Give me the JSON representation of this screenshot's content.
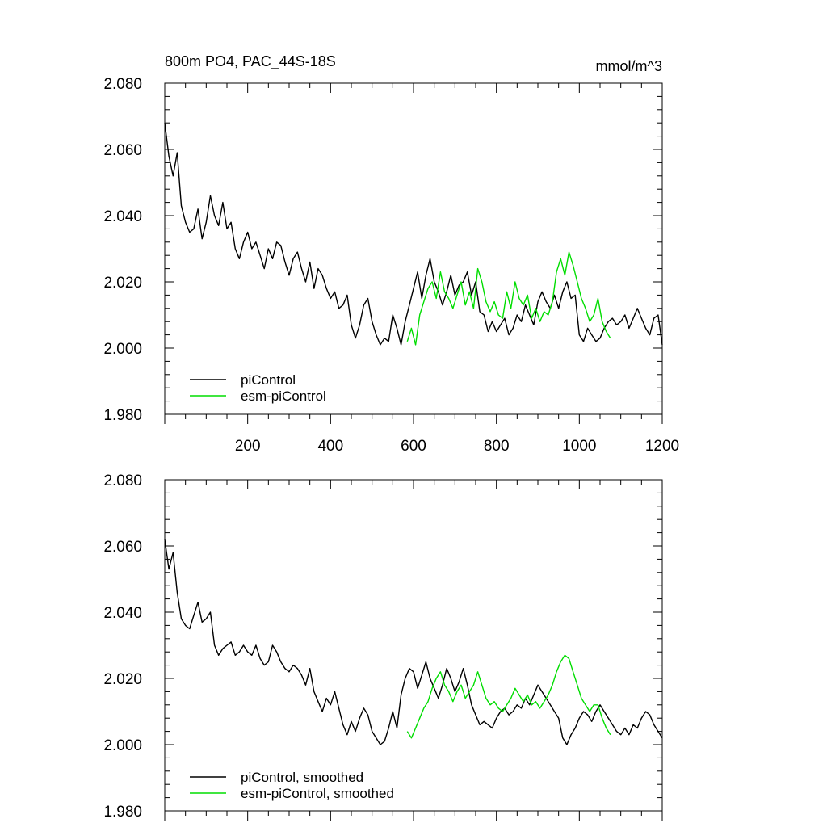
{
  "chart_data": [
    {
      "type": "line",
      "title": "800m PO4, PAC_44S-18S",
      "units": "mmol/m^3",
      "xlabel": "",
      "ylabel": "",
      "xlim": [
        0,
        1200
      ],
      "ylim": [
        1.98,
        2.08
      ],
      "yticks": [
        "2.080",
        "2.060",
        "2.040",
        "2.020",
        "2.000",
        "1.980"
      ],
      "xticks": [
        "200",
        "400",
        "600",
        "800",
        "1000",
        "1200"
      ],
      "grid": false,
      "legend_position": "bottom-left",
      "series": [
        {
          "name": "piControl",
          "color": "#000000",
          "x": [
            0,
            10,
            20,
            30,
            40,
            50,
            60,
            70,
            80,
            90,
            100,
            110,
            120,
            130,
            140,
            150,
            160,
            170,
            180,
            190,
            200,
            210,
            220,
            230,
            240,
            250,
            260,
            270,
            280,
            290,
            300,
            310,
            320,
            330,
            340,
            350,
            360,
            370,
            380,
            390,
            400,
            410,
            420,
            430,
            440,
            450,
            460,
            470,
            480,
            490,
            500,
            510,
            520,
            530,
            540,
            550,
            560,
            570,
            580,
            590,
            600,
            610,
            620,
            630,
            640,
            650,
            660,
            670,
            680,
            690,
            700,
            710,
            720,
            730,
            740,
            750,
            760,
            770,
            780,
            790,
            800,
            810,
            820,
            830,
            840,
            850,
            860,
            870,
            880,
            890,
            900,
            910,
            920,
            930,
            940,
            950,
            960,
            970,
            980,
            990,
            1000,
            1010,
            1020,
            1030,
            1040,
            1050,
            1060,
            1070,
            1080,
            1090,
            1100,
            1110,
            1120,
            1130,
            1140,
            1150,
            1160,
            1170,
            1180,
            1190,
            1200
          ],
          "values": [
            2.068,
            2.058,
            2.052,
            2.059,
            2.043,
            2.038,
            2.035,
            2.036,
            2.042,
            2.033,
            2.038,
            2.046,
            2.04,
            2.037,
            2.044,
            2.036,
            2.038,
            2.03,
            2.027,
            2.032,
            2.035,
            2.03,
            2.032,
            2.028,
            2.024,
            2.03,
            2.027,
            2.032,
            2.031,
            2.026,
            2.022,
            2.027,
            2.029,
            2.024,
            2.02,
            2.026,
            2.018,
            2.024,
            2.022,
            2.018,
            2.015,
            2.017,
            2.012,
            2.013,
            2.016,
            2.007,
            2.003,
            2.007,
            2.013,
            2.015,
            2.008,
            2.004,
            2.001,
            2.003,
            2.002,
            2.01,
            2.006,
            2.001,
            2.008,
            2.013,
            2.018,
            2.023,
            2.015,
            2.022,
            2.027,
            2.02,
            2.017,
            2.013,
            2.017,
            2.022,
            2.016,
            2.019,
            2.02,
            2.023,
            2.016,
            2.02,
            2.011,
            2.01,
            2.005,
            2.008,
            2.005,
            2.007,
            2.009,
            2.004,
            2.006,
            2.01,
            2.008,
            2.013,
            2.01,
            2.007,
            2.014,
            2.017,
            2.014,
            2.012,
            2.016,
            2.012,
            2.017,
            2.02,
            2.015,
            2.016,
            2.004,
            2.002,
            2.006,
            2.004,
            2.002,
            2.003,
            2.006,
            2.008,
            2.009,
            2.007,
            2.008,
            2.01,
            2.006,
            2.009,
            2.012,
            2.009,
            2.006,
            2.004,
            2.009,
            2.01,
            2.001
          ]
        },
        {
          "name": "esm-piControl",
          "color": "#00dd00",
          "x": [
            585,
            595,
            605,
            615,
            625,
            635,
            645,
            655,
            665,
            675,
            685,
            695,
            705,
            715,
            725,
            735,
            745,
            755,
            765,
            775,
            785,
            795,
            805,
            815,
            825,
            835,
            845,
            855,
            865,
            875,
            885,
            895,
            905,
            915,
            925,
            935,
            945,
            955,
            965,
            975,
            985,
            995,
            1005,
            1015,
            1025,
            1035,
            1045,
            1055,
            1065,
            1075
          ],
          "values": [
            2.002,
            2.006,
            2.001,
            2.01,
            2.014,
            2.018,
            2.02,
            2.015,
            2.023,
            2.017,
            2.015,
            2.012,
            2.016,
            2.02,
            2.013,
            2.017,
            2.012,
            2.024,
            2.02,
            2.014,
            2.011,
            2.014,
            2.01,
            2.009,
            2.017,
            2.012,
            2.02,
            2.015,
            2.013,
            2.016,
            2.009,
            2.012,
            2.008,
            2.011,
            2.01,
            2.014,
            2.023,
            2.027,
            2.022,
            2.029,
            2.025,
            2.02,
            2.015,
            2.012,
            2.008,
            2.01,
            2.015,
            2.008,
            2.005,
            2.003
          ]
        }
      ]
    },
    {
      "type": "line",
      "title": "",
      "xlabel": "",
      "ylabel": "",
      "xlim": [
        0,
        1200
      ],
      "ylim": [
        1.98,
        2.08
      ],
      "yticks": [
        "2.080",
        "2.060",
        "2.040",
        "2.020",
        "2.000",
        "1.980"
      ],
      "grid": false,
      "legend_position": "bottom-left",
      "series": [
        {
          "name": "piControl, smoothed",
          "color": "#000000",
          "x": [
            0,
            10,
            20,
            30,
            40,
            50,
            60,
            70,
            80,
            90,
            100,
            110,
            120,
            130,
            140,
            150,
            160,
            170,
            180,
            190,
            200,
            210,
            220,
            230,
            240,
            250,
            260,
            270,
            280,
            290,
            300,
            310,
            320,
            330,
            340,
            350,
            360,
            370,
            380,
            390,
            400,
            410,
            420,
            430,
            440,
            450,
            460,
            470,
            480,
            490,
            500,
            510,
            520,
            530,
            540,
            550,
            560,
            570,
            580,
            590,
            600,
            610,
            620,
            630,
            640,
            650,
            660,
            670,
            680,
            690,
            700,
            710,
            720,
            730,
            740,
            750,
            760,
            770,
            780,
            790,
            800,
            810,
            820,
            830,
            840,
            850,
            860,
            870,
            880,
            890,
            900,
            910,
            920,
            930,
            940,
            950,
            960,
            970,
            980,
            990,
            1000,
            1010,
            1020,
            1030,
            1040,
            1050,
            1060,
            1070,
            1080,
            1090,
            1100,
            1110,
            1120,
            1130,
            1140,
            1150,
            1160,
            1170,
            1180,
            1190,
            1200
          ],
          "values": [
            2.062,
            2.053,
            2.058,
            2.046,
            2.038,
            2.036,
            2.035,
            2.039,
            2.043,
            2.037,
            2.038,
            2.04,
            2.03,
            2.027,
            2.029,
            2.03,
            2.031,
            2.027,
            2.028,
            2.03,
            2.028,
            2.027,
            2.03,
            2.026,
            2.024,
            2.025,
            2.03,
            2.028,
            2.025,
            2.023,
            2.022,
            2.024,
            2.023,
            2.021,
            2.018,
            2.023,
            2.016,
            2.013,
            2.01,
            2.014,
            2.012,
            2.016,
            2.011,
            2.006,
            2.003,
            2.007,
            2.004,
            2.008,
            2.011,
            2.009,
            2.004,
            2.002,
            2.0,
            2.001,
            2.005,
            2.01,
            2.005,
            2.015,
            2.02,
            2.023,
            2.022,
            2.017,
            2.021,
            2.025,
            2.02,
            2.017,
            2.014,
            2.018,
            2.023,
            2.02,
            2.016,
            2.019,
            2.023,
            2.018,
            2.012,
            2.009,
            2.006,
            2.007,
            2.006,
            2.005,
            2.008,
            2.01,
            2.011,
            2.009,
            2.01,
            2.012,
            2.011,
            2.014,
            2.012,
            2.015,
            2.018,
            2.016,
            2.014,
            2.012,
            2.01,
            2.008,
            2.002,
            2.0,
            2.003,
            2.005,
            2.008,
            2.01,
            2.009,
            2.007,
            2.01,
            2.012,
            2.01,
            2.008,
            2.006,
            2.004,
            2.003,
            2.005,
            2.003,
            2.006,
            2.005,
            2.008,
            2.01,
            2.009,
            2.006,
            2.004,
            2.002
          ]
        },
        {
          "name": "esm-piControl, smoothed",
          "color": "#00dd00",
          "x": [
            585,
            595,
            605,
            615,
            625,
            635,
            645,
            655,
            665,
            675,
            685,
            695,
            705,
            715,
            725,
            735,
            745,
            755,
            765,
            775,
            785,
            795,
            805,
            815,
            825,
            835,
            845,
            855,
            865,
            875,
            885,
            895,
            905,
            915,
            925,
            935,
            945,
            955,
            965,
            975,
            985,
            995,
            1005,
            1015,
            1025,
            1035,
            1045,
            1055,
            1065,
            1075
          ],
          "values": [
            2.004,
            2.002,
            2.005,
            2.008,
            2.011,
            2.013,
            2.017,
            2.02,
            2.022,
            2.018,
            2.016,
            2.013,
            2.016,
            2.018,
            2.014,
            2.016,
            2.018,
            2.022,
            2.018,
            2.014,
            2.012,
            2.013,
            2.011,
            2.01,
            2.012,
            2.014,
            2.017,
            2.015,
            2.013,
            2.015,
            2.012,
            2.013,
            2.011,
            2.013,
            2.015,
            2.018,
            2.022,
            2.025,
            2.027,
            2.026,
            2.022,
            2.018,
            2.014,
            2.012,
            2.01,
            2.012,
            2.012,
            2.008,
            2.005,
            2.003
          ]
        }
      ]
    }
  ]
}
